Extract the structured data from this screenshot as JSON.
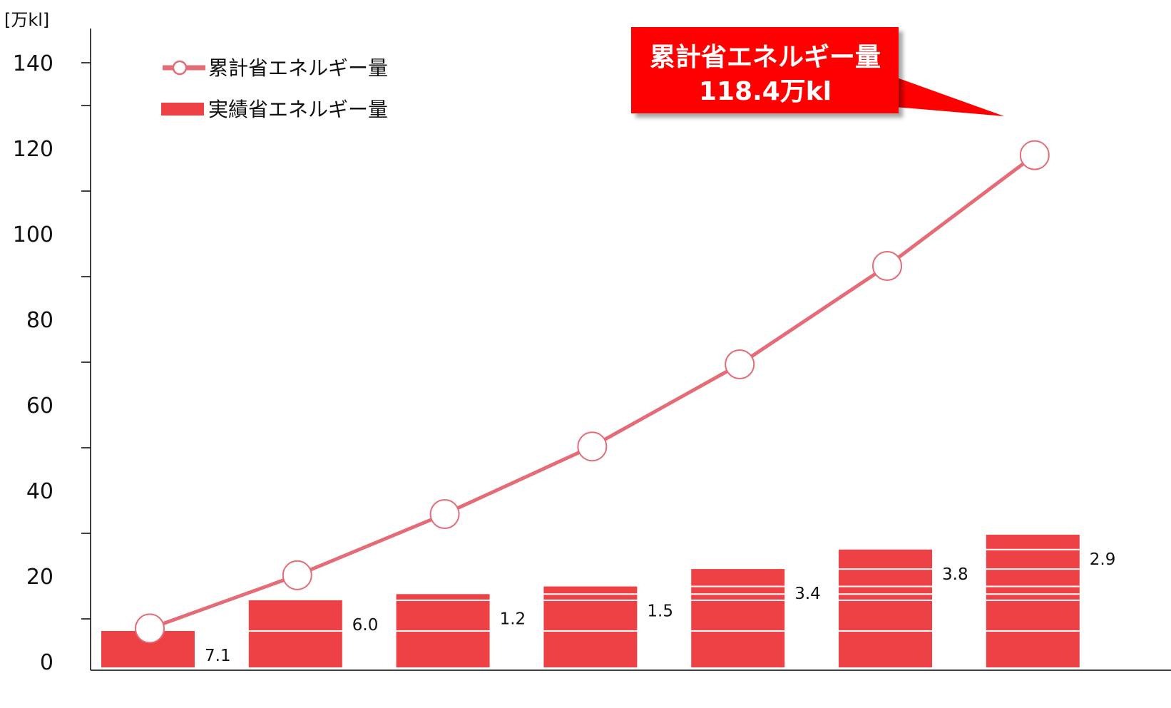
{
  "chart_data": {
    "type": "bar",
    "unit_label": "[万kl]",
    "ylim": [
      0,
      150
    ],
    "yticks": [
      0,
      20,
      40,
      60,
      80,
      100,
      120,
      140
    ],
    "categories": [
      "",
      "",
      "",
      "",
      "",
      "",
      ""
    ],
    "series": [
      {
        "name": "実績省エネルギー量",
        "type": "bar",
        "segments": [
          [
            7.1
          ],
          [
            7.1,
            6.0
          ],
          [
            7.1,
            6.0,
            1.2
          ],
          [
            7.1,
            6.0,
            1.2,
            1.5
          ],
          [
            7.1,
            6.0,
            1.2,
            1.5,
            3.4
          ],
          [
            7.1,
            6.0,
            1.2,
            1.5,
            3.4,
            3.8
          ],
          [
            7.1,
            6.0,
            1.2,
            1.5,
            3.4,
            3.8,
            2.9
          ]
        ],
        "labels": [
          "7.1",
          "6.0",
          "1.2",
          "1.5",
          "3.4",
          "3.8",
          "2.9"
        ]
      },
      {
        "name": "累計省エネルギー量",
        "type": "line",
        "values": [
          7.1,
          20.2,
          34.5,
          50.3,
          69.5,
          92.5,
          118.4
        ]
      }
    ],
    "legend": [
      "累計省エネルギー量",
      "実績省エネルギー量"
    ],
    "legend_position": "top-left",
    "callout": {
      "line1": "累計省エネルギー量",
      "line2": "118.4万kl"
    },
    "colors": {
      "bar": "#EE4145",
      "line": "#E46C77",
      "callout_bg": "#FF0000",
      "axis": "#000000"
    }
  }
}
